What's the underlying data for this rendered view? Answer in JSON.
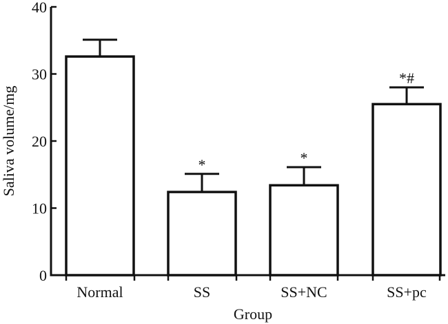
{
  "chart_data": {
    "type": "bar",
    "title": "",
    "xlabel": "Group",
    "ylabel": "Saliva volume/mg",
    "ylim": [
      0,
      40
    ],
    "yticks": [
      0,
      10,
      20,
      30,
      40
    ],
    "categories": [
      "Normal",
      "SS",
      "SS+NC",
      "SS+pc"
    ],
    "values": [
      32.6,
      12.4,
      13.4,
      25.5
    ],
    "errors": [
      2.5,
      2.7,
      2.7,
      2.5
    ],
    "annotations": [
      "",
      "*",
      "*",
      "*#"
    ],
    "bar_color": "#ffffff",
    "edge_color": "#111111",
    "grid": false
  }
}
